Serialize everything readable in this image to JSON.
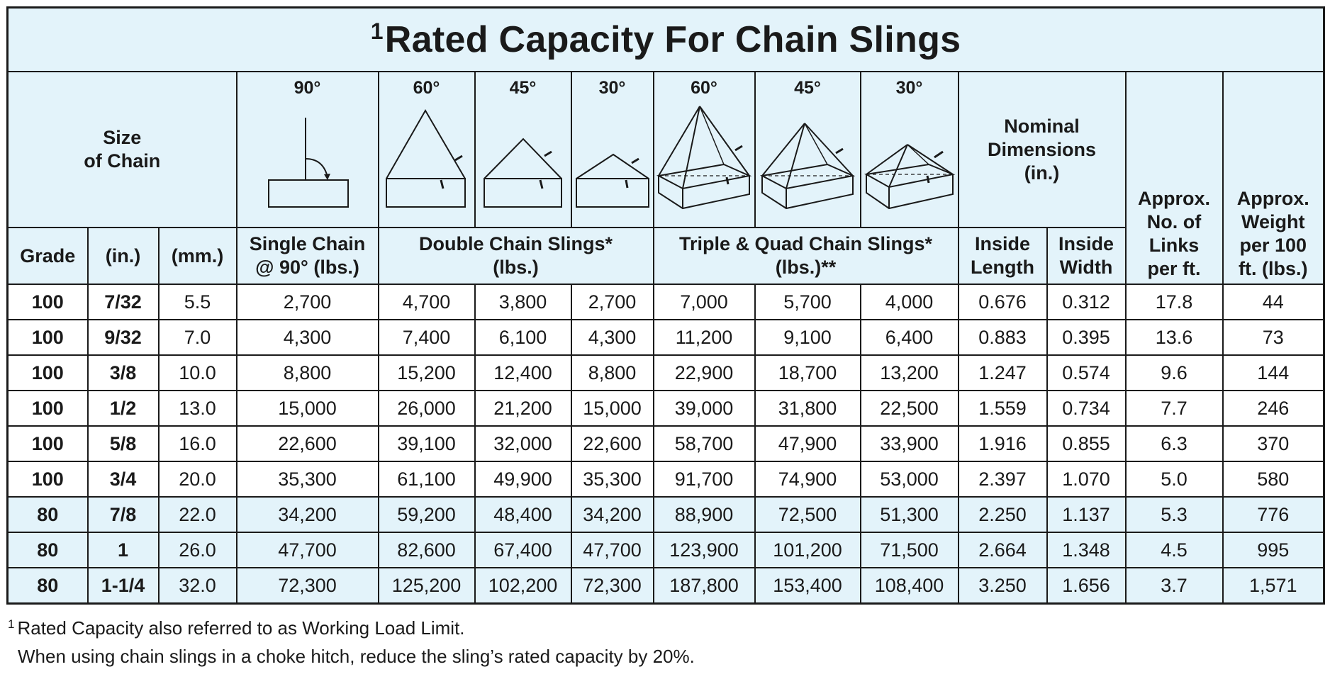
{
  "title": {
    "sup": "1",
    "text": "Rated Capacity For Chain Slings"
  },
  "header": {
    "size_of_chain": "Size\nof Chain",
    "angles": {
      "single": "90°",
      "double": [
        "60°",
        "45°",
        "30°"
      ],
      "triple": [
        "60°",
        "45°",
        "30°"
      ]
    },
    "nominal_dimensions": "Nominal\nDimensions\n(in.)",
    "approx_links": "Approx.\nNo. of\nLinks\nper ft.",
    "approx_weight": "Approx.\nWeight\nper 100\nft. (lbs.)",
    "grade": "Grade",
    "inches": "(in.)",
    "mm": "(mm.)",
    "single_chain": "Single Chain\n@ 90° (lbs.)",
    "double_chain": "Double Chain Slings*\n(lbs.)",
    "triple_quad": "Triple & Quad Chain Slings*\n(lbs.)**",
    "inside_length": "Inside\nLength",
    "inside_width": "Inside\nWidth"
  },
  "rows": [
    [
      "100",
      "7/32",
      "5.5",
      "2,700",
      "4,700",
      "3,800",
      "2,700",
      "7,000",
      "5,700",
      "4,000",
      "0.676",
      "0.312",
      "17.8",
      "44"
    ],
    [
      "100",
      "9/32",
      "7.0",
      "4,300",
      "7,400",
      "6,100",
      "4,300",
      "11,200",
      "9,100",
      "6,400",
      "0.883",
      "0.395",
      "13.6",
      "73"
    ],
    [
      "100",
      "3/8",
      "10.0",
      "8,800",
      "15,200",
      "12,400",
      "8,800",
      "22,900",
      "18,700",
      "13,200",
      "1.247",
      "0.574",
      "9.6",
      "144"
    ],
    [
      "100",
      "1/2",
      "13.0",
      "15,000",
      "26,000",
      "21,200",
      "15,000",
      "39,000",
      "31,800",
      "22,500",
      "1.559",
      "0.734",
      "7.7",
      "246"
    ],
    [
      "100",
      "5/8",
      "16.0",
      "22,600",
      "39,100",
      "32,000",
      "22,600",
      "58,700",
      "47,900",
      "33,900",
      "1.916",
      "0.855",
      "6.3",
      "370"
    ],
    [
      "100",
      "3/4",
      "20.0",
      "35,300",
      "61,100",
      "49,900",
      "35,300",
      "91,700",
      "74,900",
      "53,000",
      "2.397",
      "1.070",
      "5.0",
      "580"
    ],
    [
      "80",
      "7/8",
      "22.0",
      "34,200",
      "59,200",
      "48,400",
      "34,200",
      "88,900",
      "72,500",
      "51,300",
      "2.250",
      "1.137",
      "5.3",
      "776"
    ],
    [
      "80",
      "1",
      "26.0",
      "47,700",
      "82,600",
      "67,400",
      "47,700",
      "123,900",
      "101,200",
      "71,500",
      "2.664",
      "1.348",
      "4.5",
      "995"
    ],
    [
      "80",
      "1-1/4",
      "32.0",
      "72,300",
      "125,200",
      "102,200",
      "72,300",
      "187,800",
      "153,400",
      "108,400",
      "3.250",
      "1.656",
      "3.7",
      "1,571"
    ]
  ],
  "alt_rows_from_index": 6,
  "notes": {
    "note1_sup": "1",
    "note1": "Rated Capacity also referred to as Working Load Limit.",
    "note2": "When using chain slings in a choke hitch, reduce the sling’s rated capacity by 20%."
  },
  "colors": {
    "header_bg": "#e3f3fa",
    "border": "#1a1a1a"
  }
}
